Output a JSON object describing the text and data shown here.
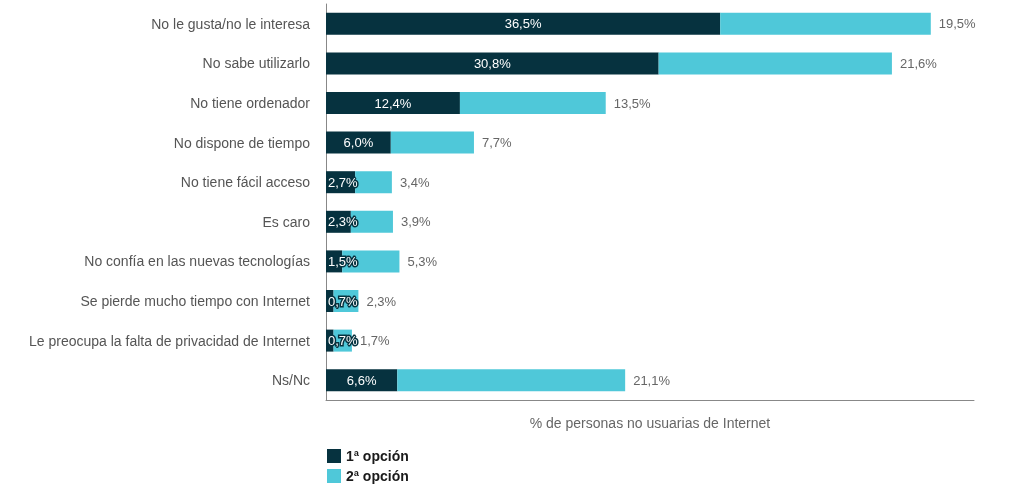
{
  "chart_data": {
    "type": "bar",
    "orientation": "horizontal",
    "stacked": true,
    "xlabel": "% de personas no usuarias de Internet",
    "categories": [
      "No le gusta/no le interesa",
      "No sabe utilizarlo",
      "No tiene ordenador",
      "No dispone de tiempo",
      "No tiene fácil acceso",
      "Es caro",
      "No confía en las nuevas tecnologías",
      "Se pierde mucho tiempo con Internet",
      "Le preocupa la falta de privacidad de Internet",
      "Ns/Nc"
    ],
    "series": [
      {
        "name": "1ª opción",
        "color": "#06323f",
        "values": [
          36.5,
          30.8,
          12.4,
          6.0,
          2.7,
          2.3,
          1.5,
          0.7,
          0.7,
          6.6
        ],
        "value_labels": [
          "36,5%",
          "30,8%",
          "12,4%",
          "6,0%",
          "2,7%",
          "2,3%",
          "1,5%",
          "0,7%",
          "0,7%",
          "6,6%"
        ]
      },
      {
        "name": "2ª opción",
        "color": "#4fc8d9",
        "values": [
          19.5,
          21.6,
          13.5,
          7.7,
          3.4,
          3.9,
          5.3,
          2.3,
          1.7,
          21.1
        ],
        "value_labels": [
          "19,5%",
          "21,6%",
          "13,5%",
          "7,7%",
          "3,4%",
          "3,9%",
          "5,3%",
          "2,3%",
          "1,7%",
          "21,1%"
        ]
      }
    ],
    "tick_labels": "y",
    "grid": false,
    "legend": "bottom left"
  }
}
